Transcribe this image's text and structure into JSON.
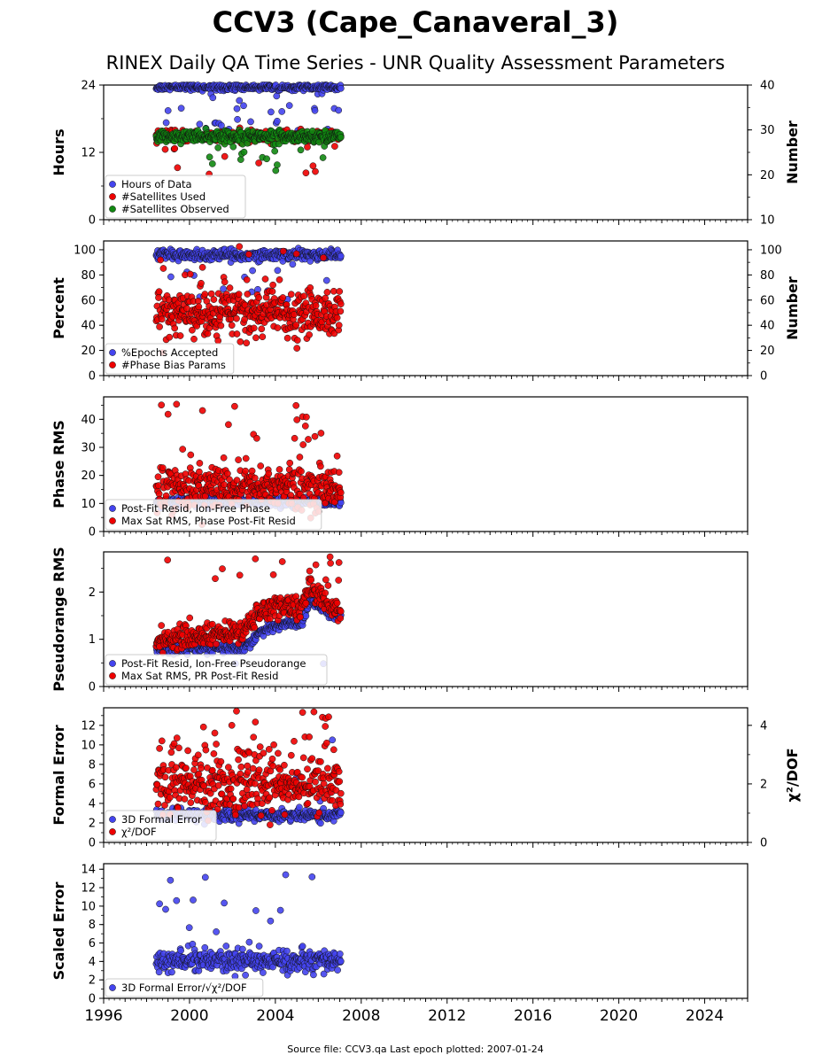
{
  "figure": {
    "title": "CCV3 (Cape_Canaveral_3)",
    "subtitle": "RINEX Daily QA Time Series - UNR Quality Assessment Parameters",
    "footer": "Source file: CCV3.qa Last epoch plotted: 2007-01-24"
  },
  "chart_data": [
    {
      "type": "scatter",
      "ylabel": "Hours",
      "ylabel_right": "Number",
      "ylim": [
        0,
        24
      ],
      "yticks": [
        "0",
        "12",
        "24"
      ],
      "ylim_right": [
        10,
        40
      ],
      "yticks_right": [
        "10",
        "20",
        "30",
        "40"
      ],
      "xlim": [
        1996,
        2026
      ],
      "legend_position": "lower-left",
      "series": [
        {
          "name": "Hours of Data",
          "color": "#4444ee",
          "axis": "left",
          "base": 23.6,
          "spread": 0.25,
          "outlier_range": [
            15,
            23
          ],
          "outlier_rate": 0.12
        },
        {
          "name": "#Satellites Used",
          "color": "#ee0000",
          "axis": "right",
          "base": 28.6,
          "spread": 0.6,
          "outlier_range": [
            20,
            29
          ],
          "outlier_rate": 0.02
        },
        {
          "name": "#Satellites Observed",
          "color": "#118811",
          "axis": "right",
          "base": 28.6,
          "spread": 0.6,
          "outlier_range": [
            20,
            28
          ],
          "outlier_rate": 0.06
        }
      ]
    },
    {
      "type": "scatter",
      "ylabel": "Percent",
      "ylabel_right": "Number",
      "ylim": [
        0,
        107
      ],
      "yticks": [
        "0",
        "20",
        "40",
        "60",
        "80",
        "100"
      ],
      "ylim_right": [
        0,
        107
      ],
      "yticks_right": [
        "0",
        "20",
        "40",
        "60",
        "80",
        "100"
      ],
      "xlim": [
        1996,
        2026
      ],
      "legend_position": "lower-left",
      "series": [
        {
          "name": "%Epochs Accepted",
          "color": "#4444ee",
          "axis": "left",
          "base": 96,
          "spread": 2,
          "outlier_range": [
            60,
            94
          ],
          "outlier_rate": 0.05
        },
        {
          "name": "#Phase Bias Params",
          "color": "#ee0000",
          "axis": "right",
          "base": 50,
          "spread": 9,
          "outlier_range": [
            18,
            105
          ],
          "outlier_rate": 0.08
        }
      ]
    },
    {
      "type": "scatter",
      "ylabel": "Phase RMS",
      "ylim": [
        0,
        48
      ],
      "yticks": [
        "0",
        "10",
        "20",
        "30",
        "40"
      ],
      "xlim": [
        1996,
        2026
      ],
      "legend_position": "lower-left",
      "series": [
        {
          "name": "Post-Fit Resid, Ion-Free Phase",
          "color": "#4444ee",
          "axis": "left",
          "base": 10.5,
          "spread": 0.7,
          "outlier_range": [
            7,
            12
          ],
          "outlier_rate": 0.02
        },
        {
          "name": "Max Sat RMS, Phase Post-Fit Resid",
          "color": "#ee0000",
          "axis": "left",
          "base": 16,
          "spread": 4,
          "outlier_range": [
            25,
            46
          ],
          "outlier_rate": 0.05
        }
      ]
    },
    {
      "type": "scatter",
      "ylabel": "Pseudorange RMS",
      "ylim": [
        0,
        2.85
      ],
      "yticks": [
        "0",
        "1",
        "2"
      ],
      "xlim": [
        1996,
        2026
      ],
      "legend_position": "lower-left",
      "series": [
        {
          "name": "Post-Fit Resid, Ion-Free Pseudorange",
          "color": "#4444ee",
          "axis": "left",
          "trend": [
            [
              1998.5,
              0.8
            ],
            [
              2002.5,
              0.82
            ],
            [
              2003.3,
              1.15
            ],
            [
              2004.5,
              1.35
            ],
            [
              2005.2,
              1.32
            ],
            [
              2005.6,
              1.8
            ],
            [
              2006.4,
              1.6
            ],
            [
              2007.0,
              1.45
            ]
          ],
          "spread": 0.05,
          "outlier_range": [
            0.45,
            0.75
          ],
          "outlier_rate": 0.005
        },
        {
          "name": "Max Sat RMS, PR Post-Fit Resid",
          "color": "#ee0000",
          "axis": "left",
          "trend": [
            [
              1998.5,
              1.0
            ],
            [
              2002.5,
              1.15
            ],
            [
              2003.3,
              1.6
            ],
            [
              2004.5,
              1.75
            ],
            [
              2005.2,
              1.6
            ],
            [
              2005.6,
              2.15
            ],
            [
              2006.4,
              1.75
            ],
            [
              2007.0,
              1.6
            ]
          ],
          "spread": 0.12,
          "outlier_range": [
            2.0,
            2.75
          ],
          "outlier_rate": 0.02
        }
      ]
    },
    {
      "type": "scatter",
      "ylabel": "Formal Error",
      "ylabel_right": "χ²/DOF",
      "ylim": [
        0,
        13.8
      ],
      "yticks": [
        "0",
        "2",
        "4",
        "6",
        "8",
        "10",
        "12"
      ],
      "ylim_right": [
        0,
        4.6
      ],
      "yticks_right": [
        "0",
        "2",
        "4"
      ],
      "xlim": [
        1996,
        2026
      ],
      "legend_position": "lower-left",
      "series": [
        {
          "name": "3D Formal Error",
          "color": "#4444ee",
          "axis": "left",
          "base": 2.8,
          "spread": 0.3,
          "outlier_range": [
            3.5,
            13.4
          ],
          "outlier_rate": 0.01
        },
        {
          "name": "χ²/DOF",
          "color": "#ee0000",
          "axis": "right",
          "base": 2.0,
          "spread": 0.5,
          "outlier_range": [
            3.0,
            4.5
          ],
          "outlier_rate": 0.06
        }
      ]
    },
    {
      "type": "scatter",
      "ylabel": "Scaled Error",
      "ylim": [
        0,
        14.6
      ],
      "yticks": [
        "0",
        "2",
        "4",
        "6",
        "8",
        "10",
        "12",
        "14"
      ],
      "xlim": [
        1996,
        2026
      ],
      "xticks": [
        "1996",
        "2000",
        "2004",
        "2008",
        "2012",
        "2016",
        "2020",
        "2024"
      ],
      "legend_position": "lower-left",
      "series": [
        {
          "name": "3D Formal Error/√χ²/DOF",
          "color": "#4444ee",
          "axis": "left",
          "base": 4.0,
          "spread": 0.6,
          "outlier_range": [
            5.5,
            14
          ],
          "outlier_rate": 0.03
        }
      ]
    }
  ],
  "data_range": {
    "start": 1998.45,
    "end": 2007.07
  }
}
